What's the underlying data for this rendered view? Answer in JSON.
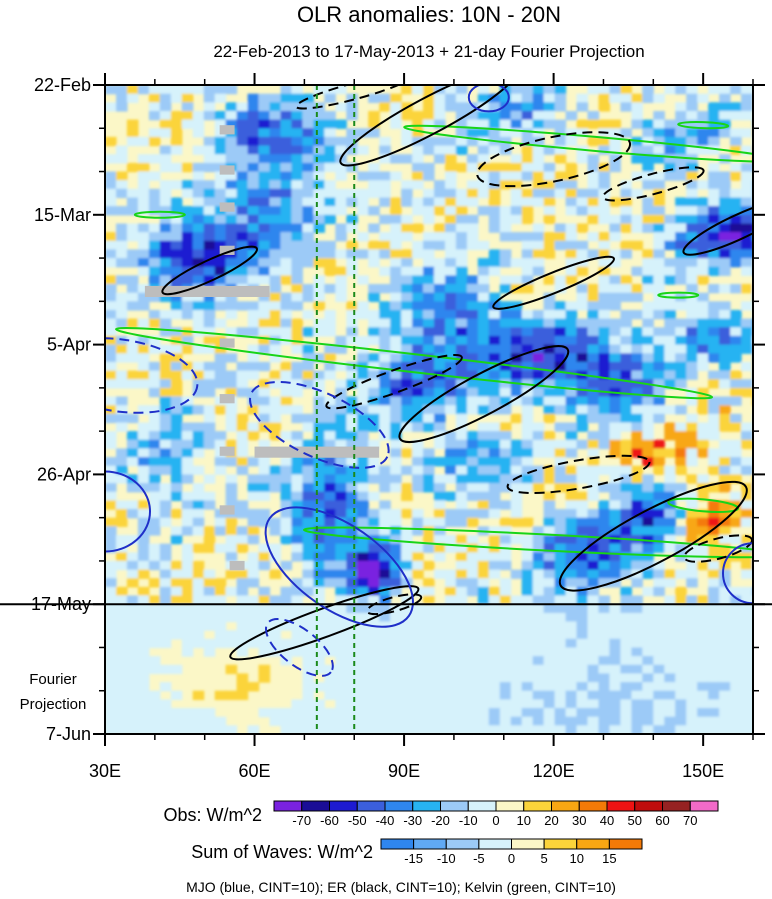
{
  "chart_data": {
    "type": "heatmap",
    "title": "OLR anomalies: 10N - 20N",
    "subtitle": "22-Feb-2013 to 17-May-2013 + 21-day Fourier Projection",
    "x_ticks": [
      "30E",
      "60E",
      "90E",
      "120E",
      "150E"
    ],
    "x_tick_values": [
      30,
      60,
      90,
      120,
      150
    ],
    "xlim": [
      30,
      160
    ],
    "y_ticks": [
      "22-Feb",
      "15-Mar",
      "5-Apr",
      "26-Apr",
      "17-May",
      "7-Jun"
    ],
    "y_tick_days": [
      0,
      21,
      42,
      63,
      84,
      105
    ],
    "projection_label": [
      "Fourier",
      "Projection"
    ],
    "projection_start_day": 84,
    "dashed_longitudes": [
      72.5,
      80
    ],
    "obs_colorbar": {
      "label": "Obs: W/m^2",
      "tick_labels": [
        "-70",
        "-60",
        "-50",
        "-40",
        "-30",
        "-20",
        "-10",
        "0",
        "10",
        "20",
        "30",
        "40",
        "50",
        "60",
        "70"
      ],
      "colors": [
        "#7a22e0",
        "#1a0d96",
        "#1d1ad1",
        "#3b5fdc",
        "#2f86ee",
        "#27b3f2",
        "#9ccaf7",
        "#d6f2fb",
        "#fbf7c7",
        "#fbd43a",
        "#f8a713",
        "#f47a07",
        "#ee1313",
        "#c00c0c",
        "#962222",
        "#f26ac8"
      ]
    },
    "waves_colorbar": {
      "label": "Sum of Waves: W/m^2",
      "tick_labels": [
        "-15",
        "-10",
        "-5",
        "0",
        "5",
        "10",
        "15"
      ],
      "colors": [
        "#2f86ee",
        "#60a9f4",
        "#9ccaf7",
        "#d6f2fb",
        "#fbf7c7",
        "#fbd43a",
        "#f8a713",
        "#f47a07"
      ]
    },
    "footer": "MJO (blue, CINT=10); ER (black, CINT=10); Kelvin (green, CINT=10)",
    "series_colors": {
      "MJO": "#1f2fc8",
      "ER": "#000000",
      "Kelvin": "#18d418"
    }
  }
}
